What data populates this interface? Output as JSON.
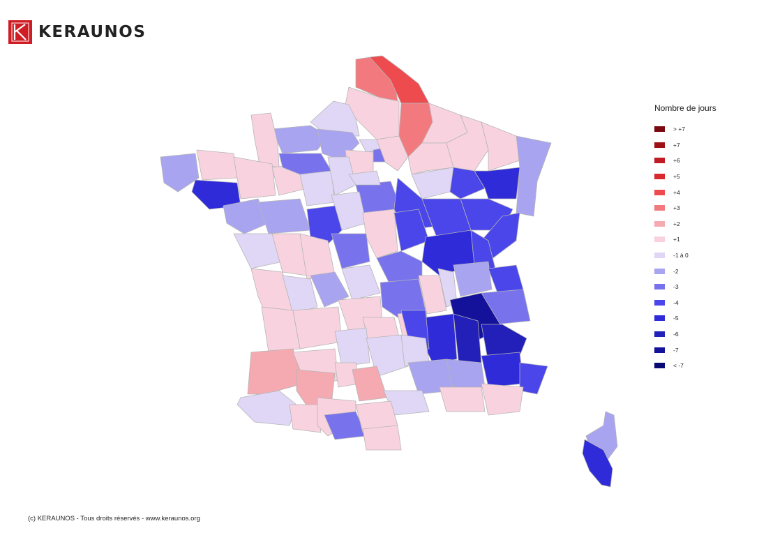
{
  "brand": {
    "name": "KERAUNOS",
    "accent": "#d01c24"
  },
  "legend": {
    "title": "Nombre de jours",
    "items": [
      {
        "label": "> +7",
        "color": "#7a0a0f"
      },
      {
        "label": "+7",
        "color": "#9e1216"
      },
      {
        "label": "+6",
        "color": "#bf1b22"
      },
      {
        "label": "+5",
        "color": "#d9282e"
      },
      {
        "label": "+4",
        "color": "#ee4b4f"
      },
      {
        "label": "+3",
        "color": "#f27a7e"
      },
      {
        "label": "+2",
        "color": "#f5a9b1"
      },
      {
        "label": "+1",
        "color": "#f8d3df"
      },
      {
        "label": "-1 à 0",
        "color": "#e0d6f6"
      },
      {
        "label": "-2",
        "color": "#a9a4f0"
      },
      {
        "label": "-3",
        "color": "#7873ec"
      },
      {
        "label": "-4",
        "color": "#4a46ea"
      },
      {
        "label": "-5",
        "color": "#2f2bd8"
      },
      {
        "label": "-6",
        "color": "#2220b8"
      },
      {
        "label": "-7",
        "color": "#14129a"
      },
      {
        "label": "< -7",
        "color": "#0a0a74"
      }
    ]
  },
  "footer": {
    "text": "(c) KERAUNOS - Tous droits réservés - www.keraunos.org"
  }
}
